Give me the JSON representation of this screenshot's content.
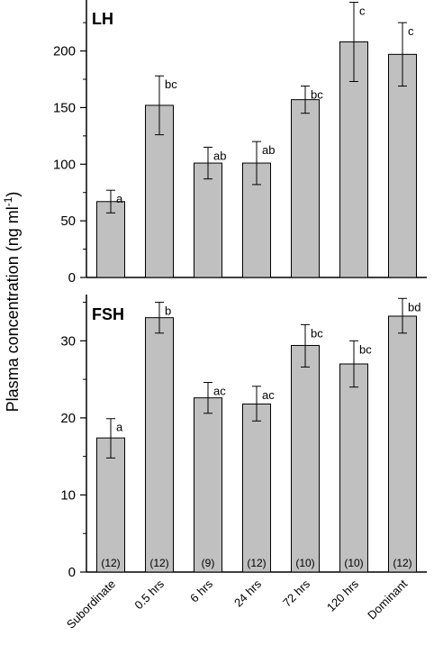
{
  "chart_data": {
    "type": "bar",
    "ylabel": "Plasma concentration (ng ml",
    "ylabel_superscript": "-1",
    "ylabel_close": ")",
    "categories": [
      "Subordinate",
      "0.5 hrs",
      "6 hrs",
      "24 hrs",
      "72 hrs",
      "120 hrs",
      "Dominant"
    ],
    "n": [
      "(12)",
      "(12)",
      "(9)",
      "(12)",
      "(10)",
      "(10)",
      "(12)"
    ],
    "bar_color": "#c0c0c0",
    "panels": [
      {
        "title": "LH",
        "ylim": [
          0,
          245
        ],
        "yticks": [
          0,
          50,
          100,
          150,
          200
        ],
        "values": [
          67,
          152,
          101,
          101,
          157,
          208,
          197
        ],
        "err_high": [
          77,
          178,
          115,
          120,
          169,
          243,
          225
        ],
        "err_low": [
          57,
          126,
          87,
          82,
          145,
          173,
          169
        ],
        "letters": [
          "a",
          "bc",
          "ab",
          "ab",
          "bc",
          "c",
          "c"
        ]
      },
      {
        "title": "FSH",
        "ylim": [
          0,
          36
        ],
        "yticks": [
          0,
          10,
          20,
          30
        ],
        "values": [
          17.4,
          33.0,
          22.6,
          21.8,
          29.4,
          27.0,
          33.2
        ],
        "err_high": [
          19.9,
          35.0,
          24.6,
          24.1,
          32.1,
          30.0,
          35.5
        ],
        "err_low": [
          14.8,
          31.0,
          20.6,
          19.6,
          26.6,
          24.0,
          31.0
        ],
        "letters": [
          "a",
          "b",
          "ac",
          "ac",
          "bc",
          "bc",
          "bd"
        ]
      }
    ]
  }
}
